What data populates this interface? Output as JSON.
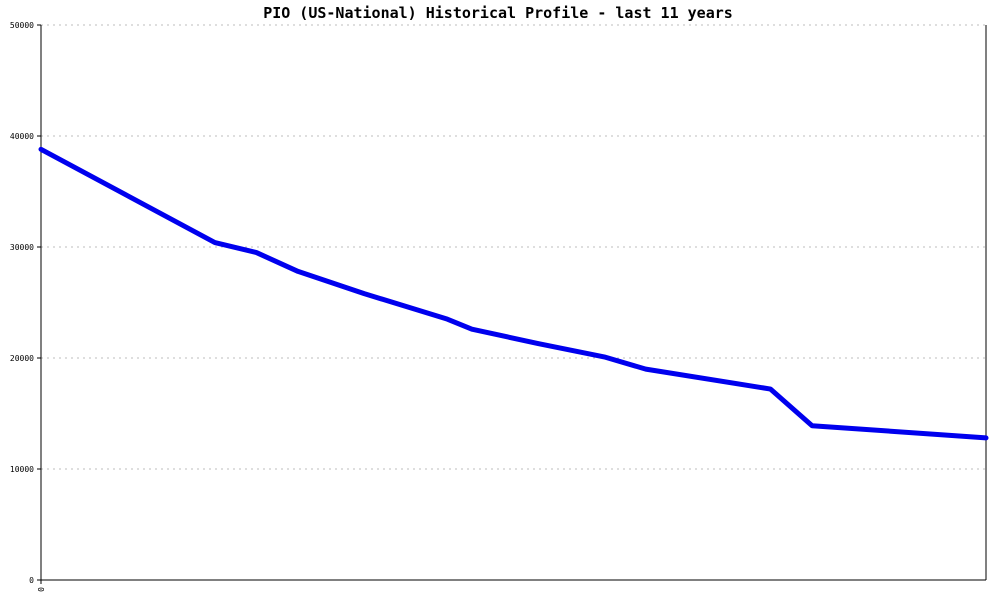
{
  "chart_data": {
    "type": "line",
    "title": "PIO (US-National) Historical Profile - last 11 years",
    "xlabel": "",
    "ylabel": "",
    "ylim": [
      0,
      50000
    ],
    "xlim": [
      0,
      1
    ],
    "x_tick_labels": [
      "0"
    ],
    "y_ticks": [
      0,
      10000,
      20000,
      30000,
      40000,
      50000
    ],
    "y_tick_labels": [
      "0",
      "10000",
      "20000",
      "30000",
      "40000",
      "50000"
    ],
    "grid": "horizontal-dotted",
    "legend": "none",
    "series": [
      {
        "color": "#0000ee",
        "x": [
          0.0,
          0.184,
          0.228,
          0.272,
          0.342,
          0.43,
          0.456,
          0.526,
          0.596,
          0.64,
          0.772,
          0.816,
          1.0
        ],
        "values": [
          38800,
          30400,
          29500,
          27800,
          25800,
          23500,
          22600,
          21300,
          20100,
          19000,
          17200,
          13900,
          12800
        ]
      }
    ]
  }
}
